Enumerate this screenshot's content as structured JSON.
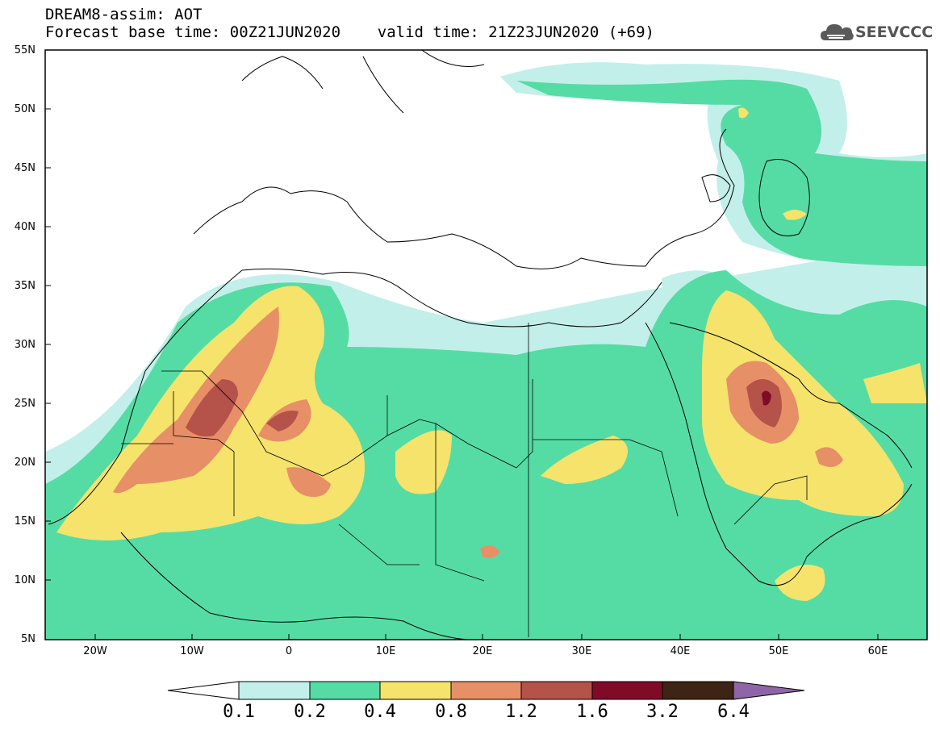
{
  "title": {
    "line1": "DREAM8-assim: AOT",
    "line2": "Forecast base time: 00Z21JUN2020    valid time: 21Z23JUN2020 (+69)"
  },
  "logo": {
    "text": "SEEVCCC",
    "icon": "cloud-icon"
  },
  "map": {
    "lat_labels": [
      "55N",
      "50N",
      "45N",
      "40N",
      "35N",
      "30N",
      "25N",
      "20N",
      "15N",
      "10N",
      "5N"
    ],
    "lon_labels": [
      "20W",
      "10W",
      "0",
      "10E",
      "20E",
      "30E",
      "40E",
      "50E",
      "60E"
    ]
  },
  "colorbar": {
    "ticks": [
      "0.1",
      "0.2",
      "0.4",
      "0.8",
      "1.2",
      "1.6",
      "3.2",
      "6.4"
    ],
    "colors": [
      "#c3efea",
      "#55dca5",
      "#f5e36b",
      "#e78f67",
      "#b5524a",
      "#7f0b27",
      "#3e2414",
      "#8f65a8"
    ]
  }
}
